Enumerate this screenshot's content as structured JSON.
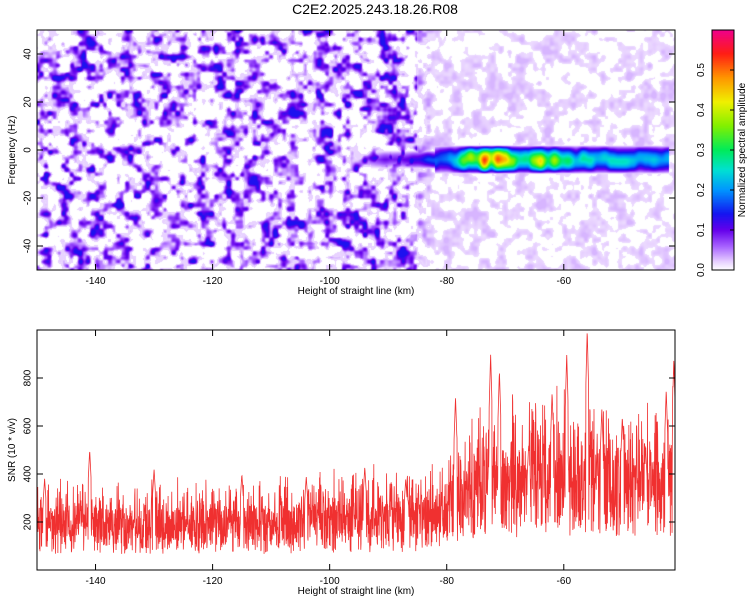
{
  "figure_title": "C2E2.2025.243.18.26.R08",
  "chart_data": [
    {
      "type": "heatmap",
      "xlabel": "Height of straight line (km)",
      "ylabel": "Frequency (Hz)",
      "xlim": [
        -150,
        -41
      ],
      "ylim": [
        -50,
        50
      ],
      "xticks": [
        -140,
        -120,
        -100,
        -80,
        -60
      ],
      "yticks": [
        -40,
        -20,
        0,
        20,
        40
      ],
      "colorbar": {
        "label": "Normalized spectral amplitude",
        "range": [
          0,
          0.6
        ],
        "ticks": [
          0.0,
          0.1,
          0.2,
          0.3,
          0.4,
          0.5
        ],
        "colormap": "rainbow"
      },
      "features": {
        "noise_region": {
          "x_range": [
            -150,
            -85
          ],
          "amplitude": [
            0.05,
            0.12
          ]
        },
        "quiet_region": {
          "x_range": [
            -85,
            -41
          ],
          "amplitude": [
            0.0,
            0.05
          ]
        },
        "signal_band": {
          "frequency_center": -4,
          "frequency_halfwidth": 6,
          "x_range": [
            -93,
            -42
          ],
          "amplitude_points": [
            {
              "x": -93,
              "amplitude": 0.08
            },
            {
              "x": -85,
              "amplitude": 0.1
            },
            {
              "x": -80,
              "amplitude": 0.2
            },
            {
              "x": -73,
              "amplitude": 0.55
            },
            {
              "x": -66,
              "amplitude": 0.35
            },
            {
              "x": -64,
              "amplitude": 0.45
            },
            {
              "x": -58,
              "amplitude": 0.25
            },
            {
              "x": -50,
              "amplitude": 0.25
            },
            {
              "x": -43,
              "amplitude": 0.2
            }
          ]
        }
      }
    },
    {
      "type": "line",
      "xlabel": "Height of straight line (km)",
      "ylabel": "SNR (10 * v/v)",
      "xlim": [
        -150,
        -41
      ],
      "ylim": [
        0,
        1000
      ],
      "xticks": [
        -140,
        -120,
        -100,
        -80,
        -60
      ],
      "yticks": [
        200,
        400,
        600,
        800
      ],
      "series": [
        {
          "color": "#f03030",
          "baseline": [
            {
              "x": -150,
              "y": 160
            },
            {
              "x": -120,
              "y": 160
            },
            {
              "x": -100,
              "y": 175
            },
            {
              "x": -82,
              "y": 190
            },
            {
              "x": -76,
              "y": 280
            },
            {
              "x": -60,
              "y": 320
            },
            {
              "x": -50,
              "y": 300
            },
            {
              "x": -41,
              "y": 320
            }
          ],
          "peaks": [
            {
              "x": -148.7,
              "y": 380
            },
            {
              "x": -141.0,
              "y": 500
            },
            {
              "x": -130.0,
              "y": 420
            },
            {
              "x": -115.0,
              "y": 400
            },
            {
              "x": -104.0,
              "y": 390
            },
            {
              "x": -94.0,
              "y": 430
            },
            {
              "x": -87.0,
              "y": 380
            },
            {
              "x": -78.5,
              "y": 720
            },
            {
              "x": -72.5,
              "y": 900
            },
            {
              "x": -71.0,
              "y": 830
            },
            {
              "x": -66.0,
              "y": 520
            },
            {
              "x": -62.0,
              "y": 740
            },
            {
              "x": -59.5,
              "y": 900
            },
            {
              "x": -56.0,
              "y": 1000
            },
            {
              "x": -53.5,
              "y": 670
            },
            {
              "x": -50.0,
              "y": 640
            },
            {
              "x": -46.0,
              "y": 500
            },
            {
              "x": -42.5,
              "y": 750
            },
            {
              "x": -41.2,
              "y": 880
            }
          ]
        }
      ]
    }
  ]
}
